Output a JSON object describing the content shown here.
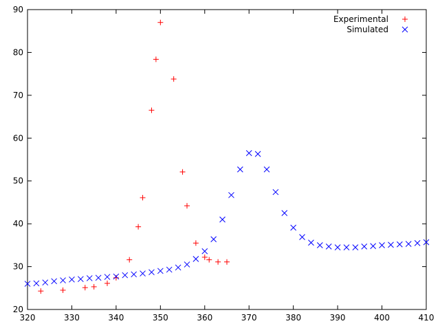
{
  "chart_data": {
    "type": "scatter",
    "title": "",
    "xlabel": "",
    "ylabel": "",
    "xlim": [
      320,
      410
    ],
    "ylim": [
      20,
      90
    ],
    "xticks": [
      320,
      330,
      340,
      350,
      360,
      370,
      380,
      390,
      400,
      410
    ],
    "yticks": [
      20,
      30,
      40,
      50,
      60,
      70,
      80,
      90
    ],
    "grid": false,
    "legend": "top-right",
    "series": [
      {
        "name": "Experimental",
        "marker": "plus",
        "color": "#ff0000",
        "x": [
          323,
          328,
          333,
          335,
          338,
          340,
          343,
          345,
          346,
          348,
          349,
          350,
          353,
          355,
          356,
          358,
          360,
          361,
          363,
          365
        ],
        "y": [
          24.3,
          24.5,
          25.1,
          25.3,
          26.1,
          27.4,
          31.6,
          39.3,
          46.1,
          66.5,
          78.4,
          87.0,
          73.8,
          52.1,
          44.2,
          35.5,
          32.2,
          31.6,
          31.1,
          31.1
        ]
      },
      {
        "name": "Simulated",
        "marker": "cross",
        "color": "#0000ff",
        "x": [
          320,
          322,
          324,
          326,
          328,
          330,
          332,
          334,
          336,
          338,
          340,
          342,
          344,
          346,
          348,
          350,
          352,
          354,
          356,
          358,
          360,
          362,
          364,
          366,
          368,
          370,
          372,
          374,
          376,
          378,
          380,
          382,
          384,
          386,
          388,
          390,
          392,
          394,
          396,
          398,
          400,
          402,
          404,
          406,
          408,
          410
        ],
        "y": [
          26.0,
          26.1,
          26.3,
          26.6,
          26.8,
          27.0,
          27.1,
          27.3,
          27.4,
          27.6,
          27.7,
          28.0,
          28.2,
          28.4,
          28.7,
          29.0,
          29.3,
          29.8,
          30.5,
          31.8,
          33.6,
          36.4,
          41.0,
          46.7,
          52.7,
          56.5,
          56.3,
          52.7,
          47.4,
          42.5,
          39.1,
          36.9,
          35.6,
          35.0,
          34.7,
          34.5,
          34.5,
          34.5,
          34.7,
          34.8,
          35.0,
          35.1,
          35.2,
          35.3,
          35.5,
          35.7
        ]
      }
    ]
  }
}
